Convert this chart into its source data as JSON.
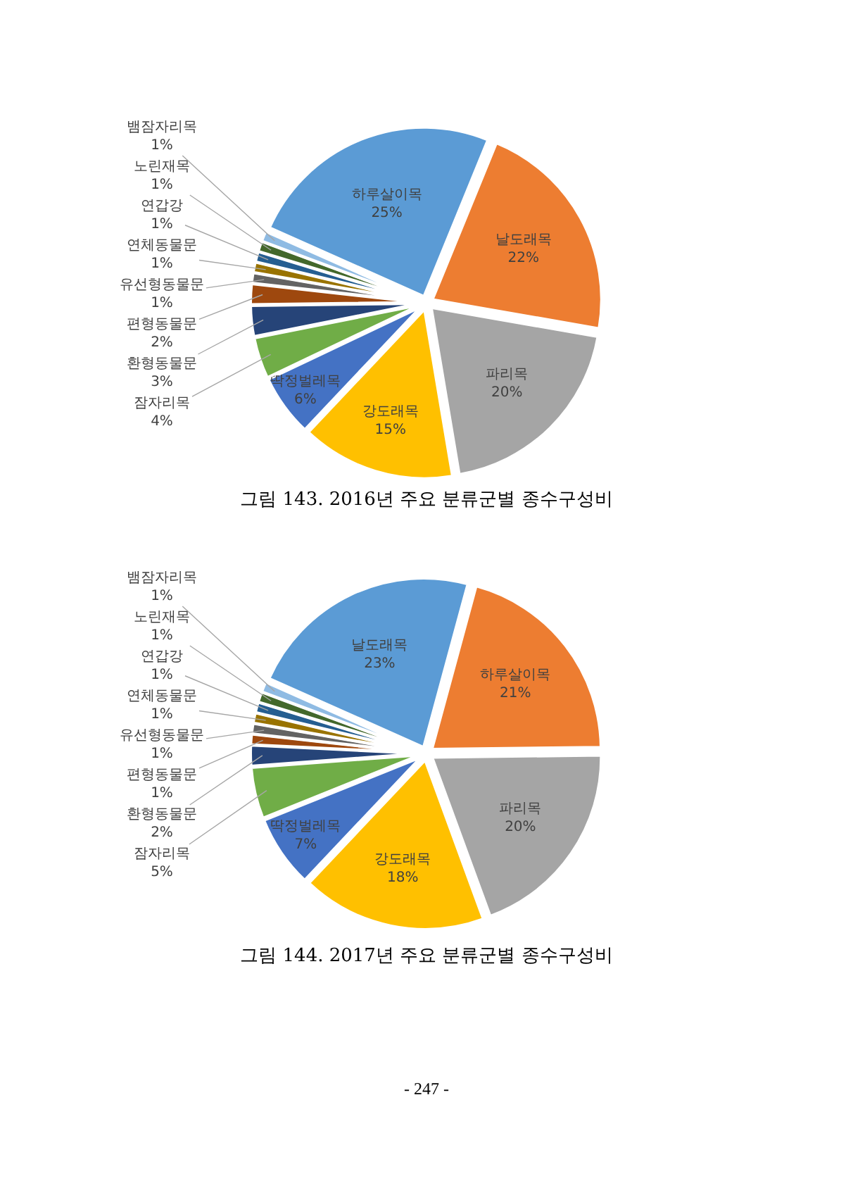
{
  "chart_data": [
    {
      "type": "pie",
      "title": "그림 143. 2016년 주요 분류군별 종수구성비",
      "categories": [
        "하루살이목",
        "날도래목",
        "파리목",
        "강도래목",
        "딱정벌레목",
        "잠자리목",
        "환형동물문",
        "편형동물문",
        "유선형동물문",
        "연체동물문",
        "연갑강",
        "노린재목",
        "뱀잠자리목"
      ],
      "values": [
        25,
        22,
        20,
        15,
        6,
        4,
        3,
        2,
        1,
        1,
        1,
        1,
        1
      ],
      "value_labels": [
        "25%",
        "22%",
        "20%",
        "15%",
        "6%",
        "4%",
        "3%",
        "2%",
        "1%",
        "1%",
        "1%",
        "1%",
        "1%"
      ],
      "colors": [
        "#5b9bd5",
        "#ed7d31",
        "#a5a5a5",
        "#ffc000",
        "#4472c4",
        "#70ad47",
        "#264478",
        "#9e480e",
        "#636363",
        "#997300",
        "#255e91",
        "#43682b",
        "#8fbbe3"
      ]
    },
    {
      "type": "pie",
      "title": "그림 144. 2017년 주요 분류군별 종수구성비",
      "categories": [
        "날도래목",
        "하루살이목",
        "파리목",
        "강도래목",
        "딱정벌레목",
        "잠자리목",
        "환형동물문",
        "편형동물문",
        "유선형동물문",
        "연체동물문",
        "연갑강",
        "노린재목",
        "뱀잠자리목"
      ],
      "values": [
        23,
        21,
        20,
        18,
        7,
        5,
        2,
        1,
        1,
        1,
        1,
        1,
        1
      ],
      "value_labels": [
        "23%",
        "21%",
        "20%",
        "18%",
        "7%",
        "5%",
        "2%",
        "1%",
        "1%",
        "1%",
        "1%",
        "1%",
        "1%"
      ],
      "colors": [
        "#5b9bd5",
        "#ed7d31",
        "#a5a5a5",
        "#ffc000",
        "#4472c4",
        "#70ad47",
        "#264478",
        "#9e480e",
        "#636363",
        "#997300",
        "#255e91",
        "#43682b",
        "#8fbbe3"
      ],
      "annotations": [
        "- 247 -"
      ]
    }
  ]
}
